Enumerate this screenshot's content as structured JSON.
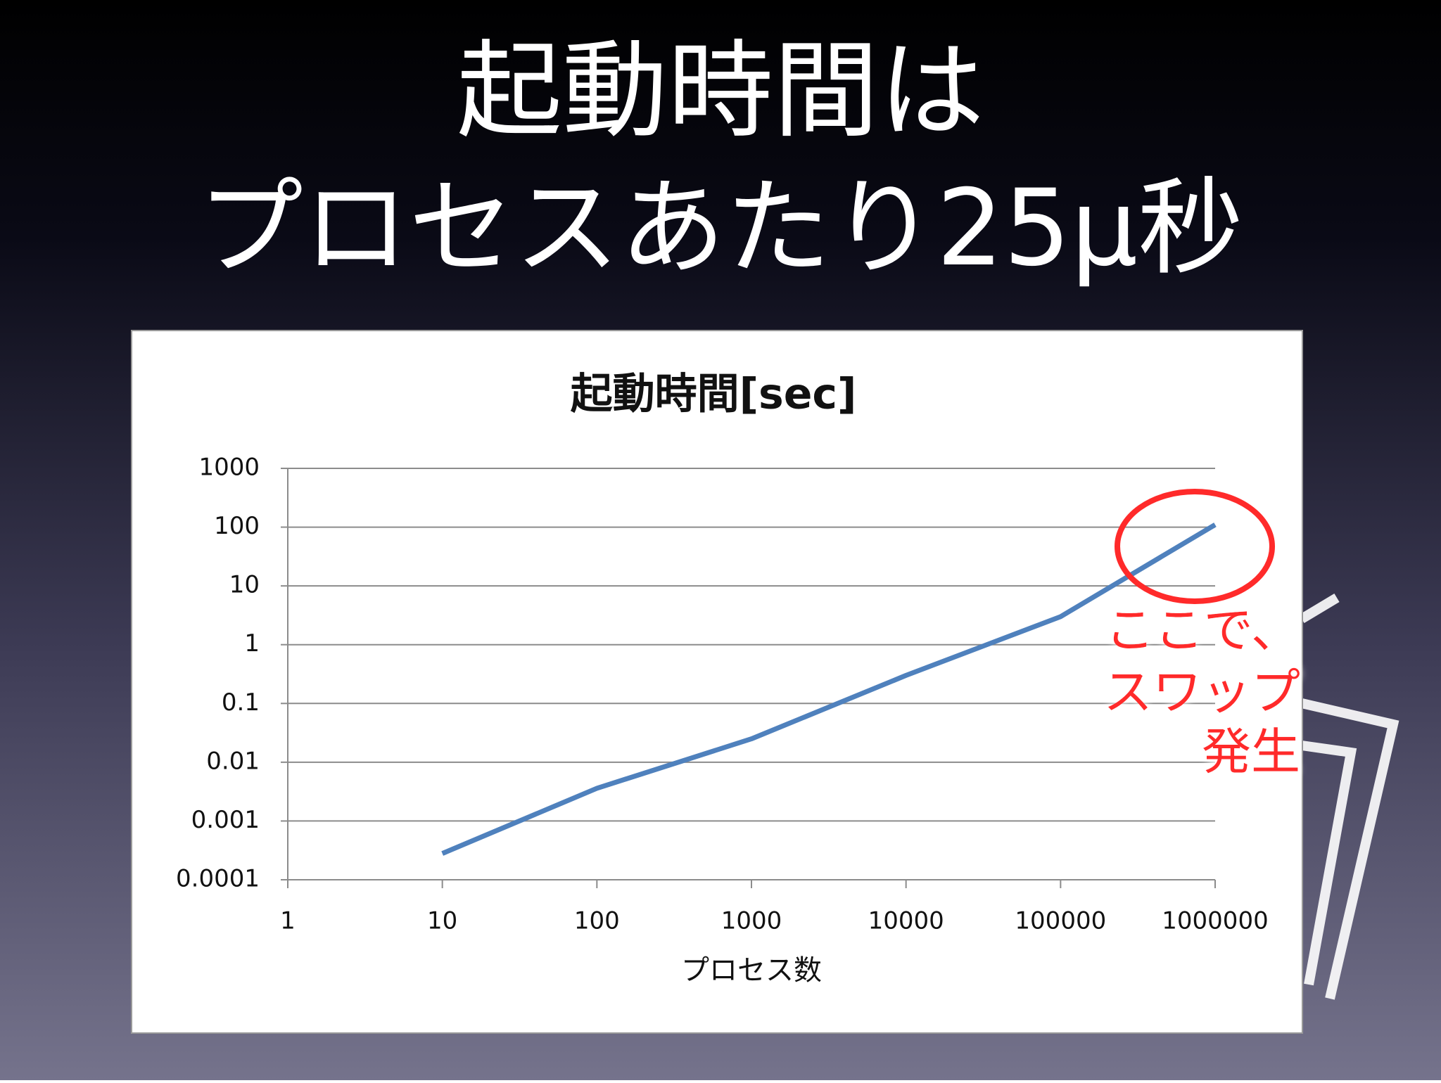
{
  "slide": {
    "title_lines": [
      "起動時間は",
      "プロセスあたり25μ秒"
    ]
  },
  "chart_data": {
    "type": "line",
    "title": "起動時間[sec]",
    "x_label": "プロセス数",
    "x": [
      10,
      100,
      1000,
      10000,
      100000,
      1000000
    ],
    "series": [
      {
        "name": "起動時間",
        "color": "#4f81bd",
        "values": [
          0.00028,
          0.0036,
          0.025,
          0.3,
          3,
          110
        ]
      }
    ],
    "xlim": [
      1,
      1000000
    ],
    "xticks": [
      1,
      10,
      100,
      1000,
      10000,
      100000,
      1000000
    ],
    "xscale": "log",
    "ylim": [
      0.0001,
      1000
    ],
    "yticks": [
      0.0001,
      0.001,
      0.01,
      0.1,
      1,
      10,
      100,
      1000
    ],
    "yscale": "log",
    "grid": true,
    "legend": false,
    "annotations": [
      "ここで、",
      "スワップ",
      "発生"
    ],
    "annotation_color": "#ff2a2a"
  }
}
